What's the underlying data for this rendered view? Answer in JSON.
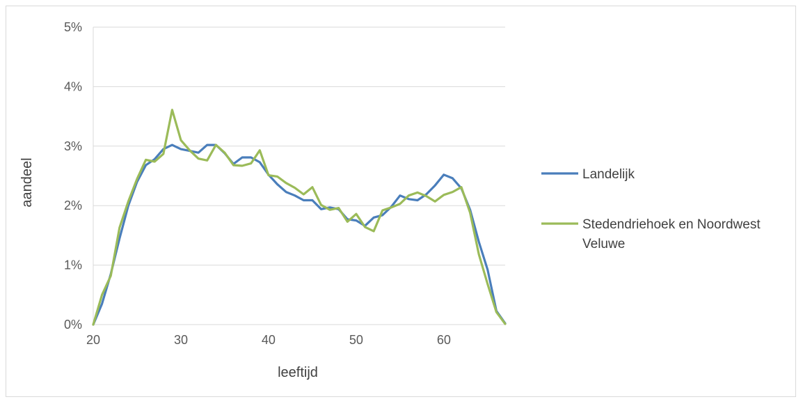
{
  "chart_data": {
    "type": "line",
    "title": "",
    "xlabel": "leeftijd",
    "ylabel": "aandeel",
    "xlim": [
      20,
      67
    ],
    "ylim": [
      0,
      0.05
    ],
    "x_ticks": [
      20,
      30,
      40,
      50,
      60
    ],
    "x_tick_labels": [
      "20",
      "30",
      "40",
      "50",
      "60"
    ],
    "y_ticks": [
      0,
      0.01,
      0.02,
      0.03,
      0.04,
      0.05
    ],
    "y_tick_labels": [
      "0%",
      "1%",
      "2%",
      "3%",
      "4%",
      "5%"
    ],
    "grid": "horizontal",
    "legend_position": "right",
    "colors": [
      "#4a7ebb",
      "#9bbb59"
    ],
    "x": [
      20,
      21,
      22,
      23,
      24,
      25,
      26,
      27,
      28,
      29,
      30,
      31,
      32,
      33,
      34,
      35,
      36,
      37,
      38,
      39,
      40,
      41,
      42,
      43,
      44,
      45,
      46,
      47,
      48,
      49,
      50,
      51,
      52,
      53,
      54,
      55,
      56,
      57,
      58,
      59,
      60,
      61,
      62,
      63,
      64,
      65,
      66,
      67
    ],
    "series": [
      {
        "name": "Landelijk",
        "values": [
          0.0,
          0.0035,
          0.0085,
          0.0145,
          0.02,
          0.024,
          0.0268,
          0.0278,
          0.0295,
          0.0302,
          0.0295,
          0.0292,
          0.0289,
          0.0302,
          0.0302,
          0.0288,
          0.027,
          0.0281,
          0.0281,
          0.0273,
          0.0252,
          0.0236,
          0.0223,
          0.0217,
          0.0209,
          0.0209,
          0.0194,
          0.0197,
          0.0194,
          0.0177,
          0.0175,
          0.0166,
          0.018,
          0.0184,
          0.0198,
          0.0217,
          0.0211,
          0.0209,
          0.0219,
          0.0234,
          0.0252,
          0.0246,
          0.0229,
          0.0193,
          0.0139,
          0.0092,
          0.0023,
          0.0002
        ]
      },
      {
        "name": "Stedendriehoek en Noordwest Veluwe",
        "values": [
          0.0,
          0.005,
          0.0082,
          0.0163,
          0.0207,
          0.0245,
          0.0277,
          0.0274,
          0.0287,
          0.0361,
          0.031,
          0.0293,
          0.0279,
          0.0276,
          0.0302,
          0.0289,
          0.0268,
          0.0267,
          0.0271,
          0.0293,
          0.0251,
          0.0249,
          0.0238,
          0.023,
          0.0219,
          0.0231,
          0.0201,
          0.0193,
          0.0196,
          0.0173,
          0.0186,
          0.0164,
          0.0157,
          0.0192,
          0.0197,
          0.0203,
          0.0217,
          0.0222,
          0.0216,
          0.0207,
          0.0218,
          0.0223,
          0.0231,
          0.0188,
          0.0118,
          0.0068,
          0.0021,
          0.0001
        ]
      }
    ]
  }
}
